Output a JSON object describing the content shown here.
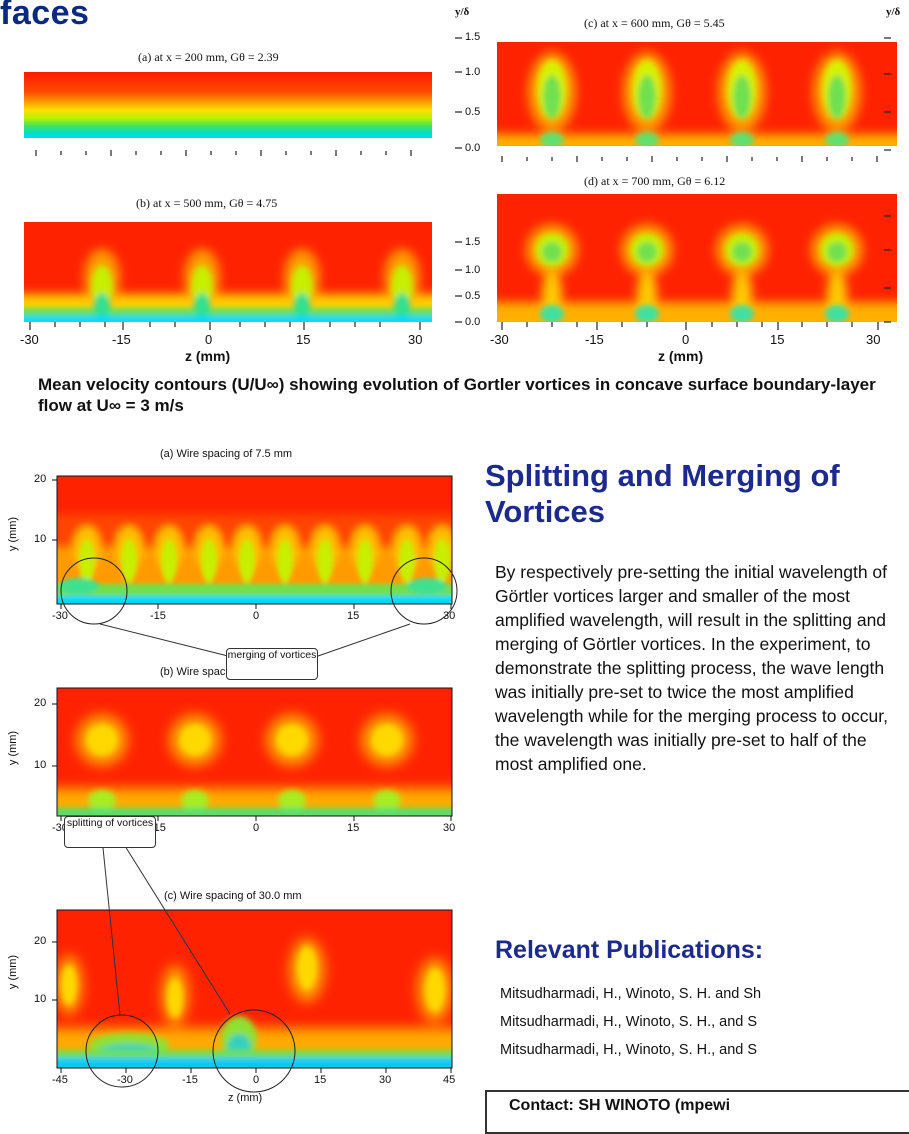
{
  "poster": {
    "title_fragment": "faces"
  },
  "top_figure": {
    "panels": [
      {
        "id": "a",
        "label": "(a) at x = 200 mm, Gθ = 2.39"
      },
      {
        "id": "b",
        "label": "(b) at x = 500 mm, Gθ = 4.75"
      },
      {
        "id": "c",
        "label": "(c) at x = 600 mm, Gθ = 5.45"
      },
      {
        "id": "d",
        "label": "(d) at x = 700 mm, Gθ = 6.12"
      }
    ],
    "y_axis_label": "y/δ",
    "y_ticks": [
      "1.5",
      "1.0",
      "0.5",
      "0.0"
    ],
    "x_axis_label": "z (mm)",
    "x_ticks": [
      "-30",
      "-15",
      "0",
      "15",
      "30"
    ],
    "caption": "Mean velocity contours (U/U∞) showing evolution of Gortler vortices in concave surface boundary-layer flow at U∞ = 3 m/s"
  },
  "bottom_figure": {
    "panels": [
      {
        "id": "a",
        "label": "(a)  Wire spacing of 7.5 mm",
        "x_ticks": [
          "-30",
          "-15",
          "0",
          "15",
          "30"
        ]
      },
      {
        "id": "b",
        "label": "(b)  Wire spacing of 15.0 mm",
        "x_ticks": [
          "-30",
          "-15",
          "0",
          "15",
          "30"
        ]
      },
      {
        "id": "c",
        "label": "(c)  Wire spacing of 30.0 mm",
        "x_ticks": [
          "-45",
          "-30",
          "-15",
          "0",
          "15",
          "30",
          "45"
        ]
      }
    ],
    "y_axis_label": "y (mm)",
    "y_ticks": [
      "20",
      "10"
    ],
    "x_axis_label": "z (mm)",
    "callout_merging": "merging of vortices",
    "callout_splitting": "splitting of vortices"
  },
  "section": {
    "heading": "Splitting and Merging of Vortices",
    "body": "By respectively pre-setting the initial wavelength of Görtler vortices larger and smaller of the most amplified wavelength, will result in the splitting and merging of Görtler vortices. In the experiment, to demonstrate the splitting process, the wave length was initially pre-set to twice the most amplified wavelength while for the merging process to occur, the wavelength was initially pre-set to half of the most amplified one."
  },
  "publications": {
    "heading": "Relevant Publications:",
    "items": [
      "Mitsudharmadi, H., Winoto, S. H. and Sh",
      "Mitsudharmadi, H., Winoto, S. H., and S",
      "Mitsudharmadi, H., Winoto, S. H., and S"
    ]
  },
  "contact": {
    "text": "Contact: SH WINOTO (mpewi"
  }
}
